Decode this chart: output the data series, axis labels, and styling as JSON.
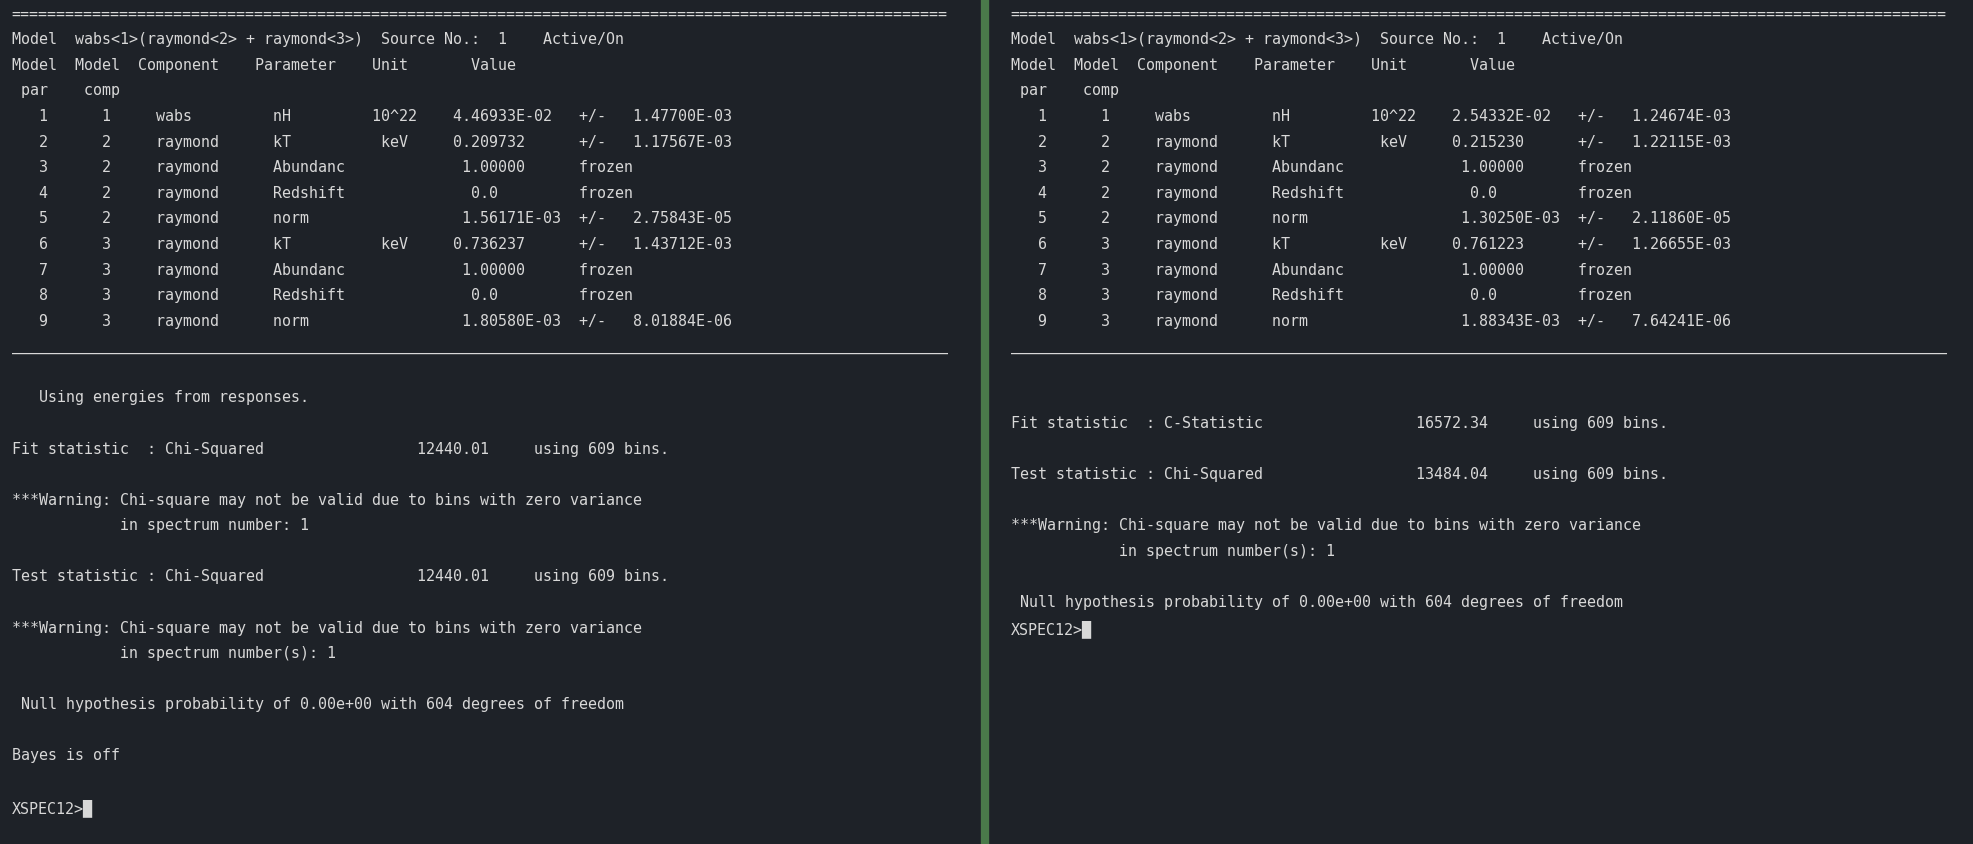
{
  "bg_color": "#1e2228",
  "text_color": "#d8d8d8",
  "divider_color": "#4a7a4a",
  "font_size": 10.8,
  "figsize": [
    19.74,
    8.44
  ],
  "dpi": 100,
  "left_lines": [
    "========================================================================================================",
    "Model  wabs<1>(raymond<2> + raymond<3>)  Source No.:  1    Active/On",
    "Model  Model  Component    Parameter    Unit       Value",
    " par    comp",
    "   1      1     wabs         nH         10^22    4.46933E-02   +/-   1.47700E-03",
    "   2      2     raymond      kT          keV     0.209732      +/-   1.17567E-03",
    "   3      2     raymond      Abundanc             1.00000      frozen",
    "   4      2     raymond      Redshift              0.0         frozen",
    "   5      2     raymond      norm                 1.56171E-03  +/-   2.75843E-05",
    "   6      3     raymond      kT          keV     0.736237      +/-   1.43712E-03",
    "   7      3     raymond      Abundanc             1.00000      frozen",
    "   8      3     raymond      Redshift              0.0         frozen",
    "   9      3     raymond      norm                 1.80580E-03  +/-   8.01884E-06",
    "________________________________________________________________________________________________________",
    "",
    "   Using energies from responses.",
    "",
    "Fit statistic  : Chi-Squared                 12440.01     using 609 bins.",
    "",
    "***Warning: Chi-square may not be valid due to bins with zero variance",
    "            in spectrum number: 1",
    "",
    "Test statistic : Chi-Squared                 12440.01     using 609 bins.",
    "",
    "***Warning: Chi-square may not be valid due to bins with zero variance",
    "            in spectrum number(s): 1",
    "",
    " Null hypothesis probability of 0.00e+00 with 604 degrees of freedom",
    "",
    "Bayes is off",
    "",
    "XSPEC12>█"
  ],
  "right_lines": [
    "========================================================================================================",
    "Model  wabs<1>(raymond<2> + raymond<3>)  Source No.:  1    Active/On",
    "Model  Model  Component    Parameter    Unit       Value",
    " par    comp",
    "   1      1     wabs         nH         10^22    2.54332E-02   +/-   1.24674E-03",
    "   2      2     raymond      kT          keV     0.215230      +/-   1.22115E-03",
    "   3      2     raymond      Abundanc             1.00000      frozen",
    "   4      2     raymond      Redshift              0.0         frozen",
    "   5      2     raymond      norm                 1.30250E-03  +/-   2.11860E-05",
    "   6      3     raymond      kT          keV     0.761223      +/-   1.26655E-03",
    "   7      3     raymond      Abundanc             1.00000      frozen",
    "   8      3     raymond      Redshift              0.0         frozen",
    "   9      3     raymond      norm                 1.88343E-03  +/-   7.64241E-06",
    "________________________________________________________________________________________________________",
    "",
    "",
    "Fit statistic  : C-Statistic                 16572.34     using 609 bins.",
    "",
    "Test statistic : Chi-Squared                 13484.04     using 609 bins.",
    "",
    "***Warning: Chi-square may not be valid due to bins with zero variance",
    "            in spectrum number(s): 1",
    "",
    " Null hypothesis probability of 0.00e+00 with 604 degrees of freedom",
    "XSPEC12>█"
  ]
}
